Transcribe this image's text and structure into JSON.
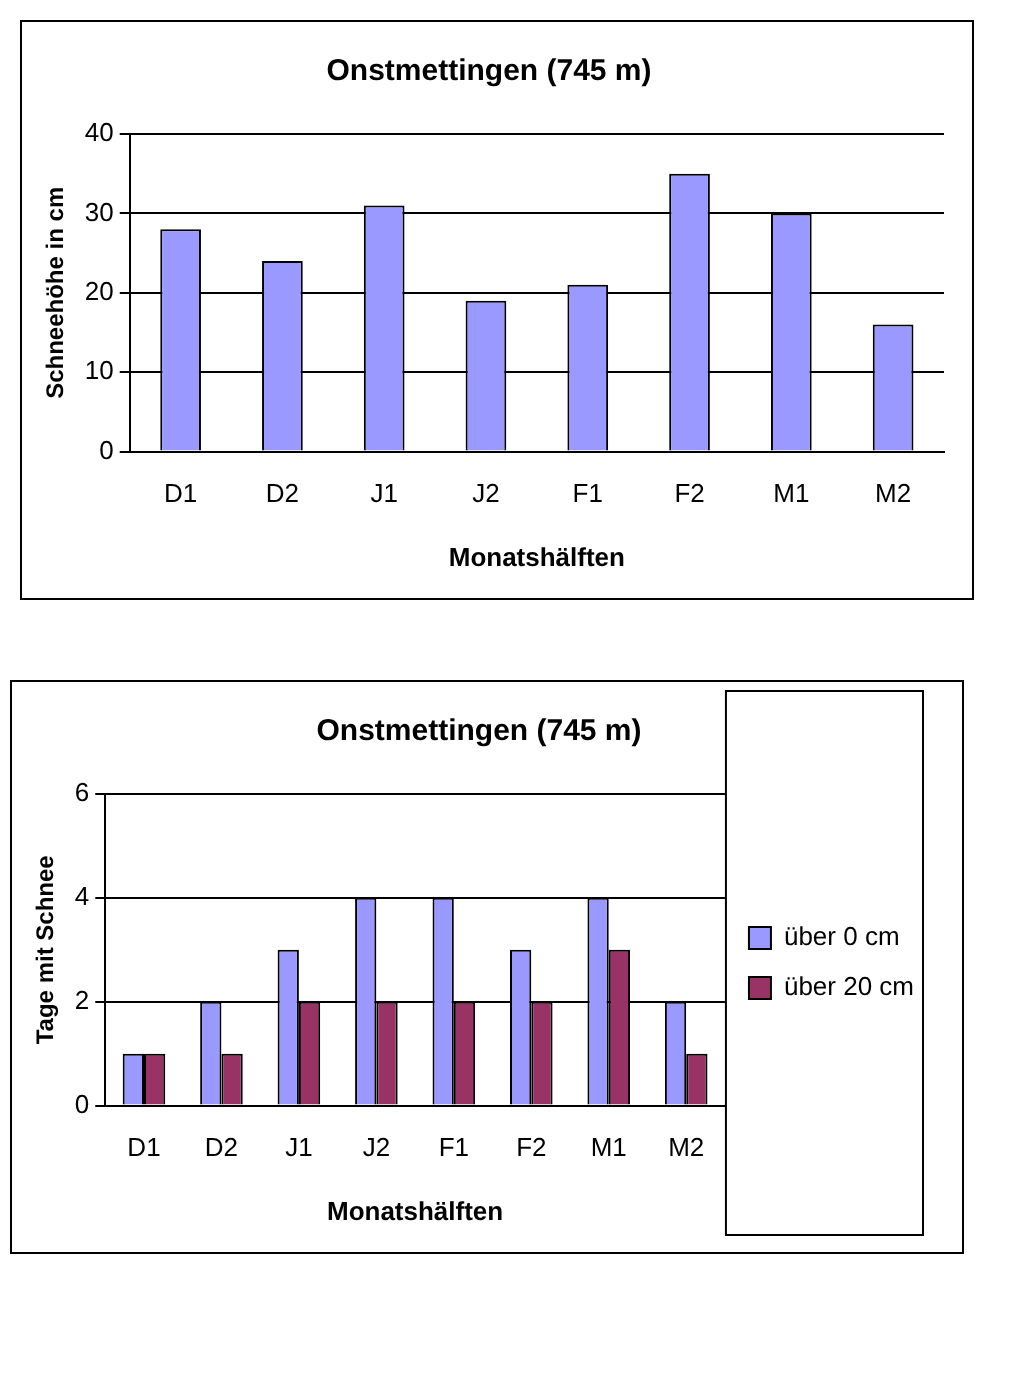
{
  "chart_data": [
    {
      "type": "bar",
      "title": "Onstmettingen (745 m)",
      "xlabel": "Monatshälften",
      "ylabel": "Schneehöhe in cm",
      "categories": [
        "D1",
        "D2",
        "J1",
        "J2",
        "F1",
        "F2",
        "M1",
        "M2"
      ],
      "values": [
        28,
        24,
        31,
        19,
        21,
        35,
        30,
        16
      ],
      "color": "#9999ff",
      "ylim": [
        0,
        40
      ],
      "yticks": [
        0,
        10,
        20,
        30,
        40
      ],
      "grid": "y",
      "legend": false
    },
    {
      "type": "bar",
      "title": "Onstmettingen (745 m)",
      "xlabel": "Monatshälften",
      "ylabel": "Tage mit Schnee",
      "categories": [
        "D1",
        "D2",
        "J1",
        "J2",
        "F1",
        "F2",
        "M1",
        "M2"
      ],
      "series": [
        {
          "name": "über 0 cm",
          "color": "#9999ff",
          "values": [
            1,
            2,
            3,
            4,
            4,
            3,
            4,
            2
          ]
        },
        {
          "name": "über 20 cm",
          "color": "#993366",
          "values": [
            1,
            1,
            2,
            2,
            2,
            2,
            3,
            1
          ]
        }
      ],
      "ylim": [
        0,
        6
      ],
      "yticks": [
        0,
        2,
        4,
        6
      ],
      "grid": "y",
      "legend": "right"
    }
  ]
}
